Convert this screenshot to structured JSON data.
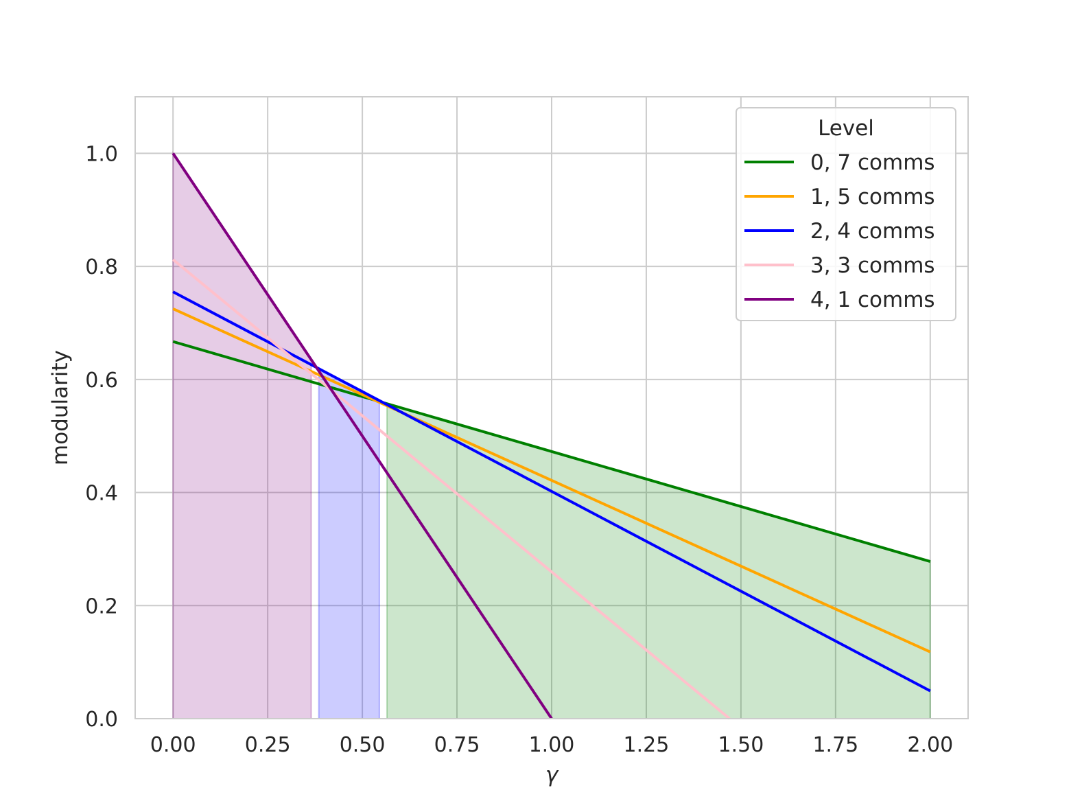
{
  "chart_data": {
    "type": "line",
    "xlabel": "γ",
    "ylabel": "modularity",
    "xlim": [
      -0.1,
      2.1
    ],
    "ylim": [
      0.0,
      1.1
    ],
    "x_ticks": [
      "0.00",
      "0.25",
      "0.50",
      "0.75",
      "1.00",
      "1.25",
      "1.50",
      "1.75",
      "2.00"
    ],
    "y_ticks": [
      "0.0",
      "0.2",
      "0.4",
      "0.6",
      "0.8",
      "1.0"
    ],
    "grid": true,
    "legend": {
      "title": "Level",
      "placement": "top-right"
    },
    "series": [
      {
        "name": "0, 7 comms",
        "color": "#008000",
        "x": [
          0.0,
          2.0
        ],
        "y": [
          0.667,
          0.278
        ]
      },
      {
        "name": "1, 5 comms",
        "color": "#ffa500",
        "x": [
          0.0,
          2.0
        ],
        "y": [
          0.725,
          0.118
        ]
      },
      {
        "name": "2, 4 comms",
        "color": "#0000ff",
        "x": [
          0.0,
          2.0
        ],
        "y": [
          0.755,
          0.049
        ]
      },
      {
        "name": "3, 3 comms",
        "color": "#ffc0cb",
        "x": [
          0.0,
          1.47
        ],
        "y": [
          0.812,
          0.0
        ]
      },
      {
        "name": "4, 1 comms",
        "color": "#800080",
        "x": [
          0.0,
          1.0
        ],
        "y": [
          1.0,
          0.0
        ]
      }
    ],
    "shaded_regions": [
      {
        "color": "#800080",
        "x": [
          0.0,
          0.365
        ]
      },
      {
        "color": "#0000ff",
        "x": [
          0.385,
          0.545
        ]
      },
      {
        "color": "#008000",
        "x": [
          0.565,
          2.0
        ]
      }
    ]
  }
}
